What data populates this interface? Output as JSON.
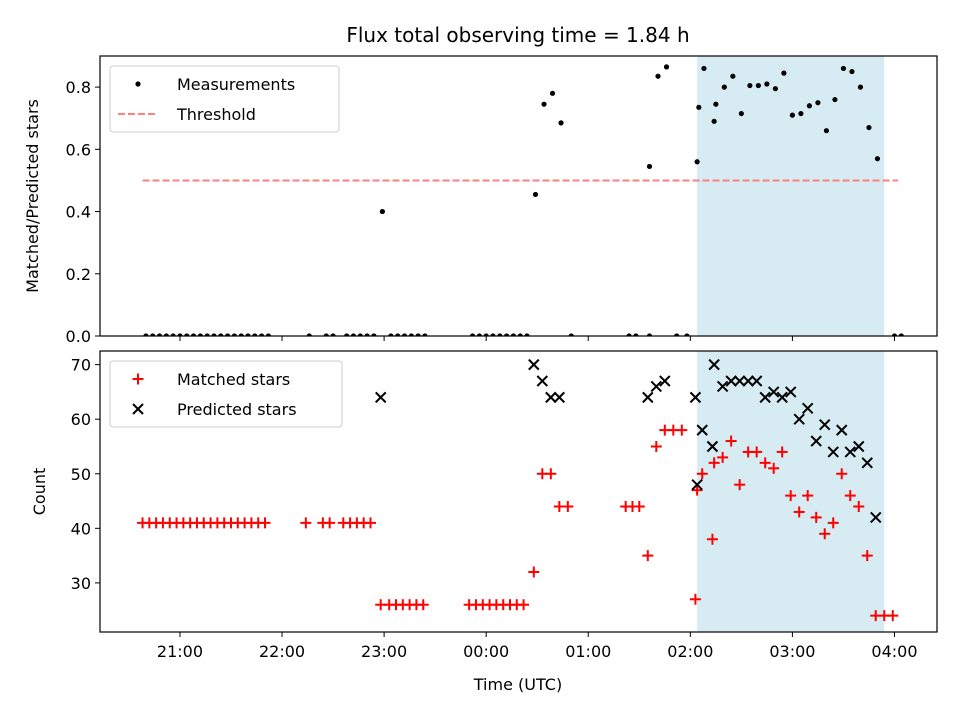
{
  "chart_data": {
    "title": "Flux total observing time = 1.84 h",
    "xlabel": "Time (UTC)",
    "x_tick_labels": [
      "21:00",
      "22:00",
      "23:00",
      "00:00",
      "01:00",
      "02:00",
      "03:00",
      "04:00"
    ],
    "highlight_interval": [
      "02:04",
      "03:54"
    ],
    "highlight_color": "#add8e6",
    "panels": [
      {
        "type": "scatter",
        "ylabel": "Matched/Predicted stars",
        "ylim": [
          0,
          0.9
        ],
        "y_ticks": [
          "0.0",
          "0.2",
          "0.4",
          "0.6",
          "0.8"
        ],
        "legend": "top-left",
        "series": [
          {
            "name": "Measurements",
            "marker": "dot",
            "color": "#000000",
            "points": [
              [
                "20:40",
                0
              ],
              [
                "20:44",
                0
              ],
              [
                "20:48",
                0
              ],
              [
                "20:52",
                0
              ],
              [
                "20:56",
                0
              ],
              [
                "21:00",
                0
              ],
              [
                "21:04",
                0
              ],
              [
                "21:08",
                0
              ],
              [
                "21:12",
                0
              ],
              [
                "21:16",
                0
              ],
              [
                "21:20",
                0
              ],
              [
                "21:24",
                0
              ],
              [
                "21:28",
                0
              ],
              [
                "21:32",
                0
              ],
              [
                "21:36",
                0
              ],
              [
                "21:40",
                0
              ],
              [
                "21:44",
                0
              ],
              [
                "21:48",
                0
              ],
              [
                "21:52",
                0
              ],
              [
                "22:16",
                0
              ],
              [
                "22:26",
                0
              ],
              [
                "22:30",
                0
              ],
              [
                "22:38",
                0
              ],
              [
                "22:42",
                0
              ],
              [
                "22:46",
                0
              ],
              [
                "22:50",
                0
              ],
              [
                "22:54",
                0
              ],
              [
                "22:59",
                0.4
              ],
              [
                "23:04",
                0
              ],
              [
                "23:08",
                0
              ],
              [
                "23:12",
                0
              ],
              [
                "23:16",
                0
              ],
              [
                "23:20",
                0
              ],
              [
                "23:24",
                0
              ],
              [
                "23:52",
                0
              ],
              [
                "23:56",
                0
              ],
              [
                "00:00",
                0
              ],
              [
                "00:04",
                0
              ],
              [
                "00:08",
                0
              ],
              [
                "00:12",
                0
              ],
              [
                "00:16",
                0
              ],
              [
                "00:20",
                0
              ],
              [
                "00:24",
                0
              ],
              [
                "00:29",
                0.455
              ],
              [
                "00:34",
                0.745
              ],
              [
                "00:39",
                0.78
              ],
              [
                "00:44",
                0.685
              ],
              [
                "00:50",
                0
              ],
              [
                "01:24",
                0
              ],
              [
                "01:28",
                0
              ],
              [
                "01:36",
                0
              ],
              [
                "01:36",
                0.545
              ],
              [
                "01:41",
                0.835
              ],
              [
                "01:46",
                0.865
              ],
              [
                "01:52",
                0
              ],
              [
                "01:58",
                0
              ],
              [
                "02:04",
                0.56
              ],
              [
                "02:05",
                0.735
              ],
              [
                "02:08",
                0.86
              ],
              [
                "02:14",
                0.69
              ],
              [
                "02:15",
                0.745
              ],
              [
                "02:20",
                0.8
              ],
              [
                "02:25",
                0.835
              ],
              [
                "02:30",
                0.715
              ],
              [
                "02:35",
                0.805
              ],
              [
                "02:40",
                0.805
              ],
              [
                "02:45",
                0.81
              ],
              [
                "02:50",
                0.795
              ],
              [
                "02:55",
                0.845
              ],
              [
                "03:00",
                0.71
              ],
              [
                "03:05",
                0.715
              ],
              [
                "03:10",
                0.74
              ],
              [
                "03:15",
                0.75
              ],
              [
                "03:20",
                0.66
              ],
              [
                "03:25",
                0.76
              ],
              [
                "03:30",
                0.86
              ],
              [
                "03:35",
                0.85
              ],
              [
                "03:40",
                0.8
              ],
              [
                "03:45",
                0.67
              ],
              [
                "03:50",
                0.57
              ],
              [
                "04:00",
                0
              ],
              [
                "04:04",
                0
              ]
            ]
          },
          {
            "name": "Threshold",
            "marker": "dashed-line",
            "color": "#ff7f7f",
            "points": [
              [
                "20:38",
                0.5
              ],
              [
                "04:02",
                0.5
              ]
            ]
          }
        ]
      },
      {
        "type": "scatter",
        "ylabel": "Count",
        "ylim": [
          21,
          72.5
        ],
        "y_ticks": [
          "30",
          "40",
          "50",
          "60",
          "70"
        ],
        "legend": "top-left",
        "series": [
          {
            "name": "Matched stars",
            "marker": "plus",
            "color": "#ff0000",
            "points": [
              [
                "20:38",
                41
              ],
              [
                "20:42",
                41
              ],
              [
                "20:46",
                41
              ],
              [
                "20:50",
                41
              ],
              [
                "20:54",
                41
              ],
              [
                "20:58",
                41
              ],
              [
                "21:02",
                41
              ],
              [
                "21:06",
                41
              ],
              [
                "21:10",
                41
              ],
              [
                "21:14",
                41
              ],
              [
                "21:18",
                41
              ],
              [
                "21:22",
                41
              ],
              [
                "21:26",
                41
              ],
              [
                "21:30",
                41
              ],
              [
                "21:34",
                41
              ],
              [
                "21:38",
                41
              ],
              [
                "21:42",
                41
              ],
              [
                "21:46",
                41
              ],
              [
                "21:50",
                41
              ],
              [
                "22:14",
                41
              ],
              [
                "22:24",
                41
              ],
              [
                "22:28",
                41
              ],
              [
                "22:36",
                41
              ],
              [
                "22:40",
                41
              ],
              [
                "22:44",
                41
              ],
              [
                "22:48",
                41
              ],
              [
                "22:52",
                41
              ],
              [
                "22:58",
                26
              ],
              [
                "23:03",
                26
              ],
              [
                "23:07",
                26
              ],
              [
                "23:11",
                26
              ],
              [
                "23:15",
                26
              ],
              [
                "23:19",
                26
              ],
              [
                "23:23",
                26
              ],
              [
                "23:50",
                26
              ],
              [
                "23:54",
                26
              ],
              [
                "23:58",
                26
              ],
              [
                "00:02",
                26
              ],
              [
                "00:06",
                26
              ],
              [
                "00:10",
                26
              ],
              [
                "00:14",
                26
              ],
              [
                "00:18",
                26
              ],
              [
                "00:22",
                26
              ],
              [
                "00:28",
                32
              ],
              [
                "00:33",
                50
              ],
              [
                "00:38",
                50
              ],
              [
                "00:43",
                44
              ],
              [
                "00:48",
                44
              ],
              [
                "01:22",
                44
              ],
              [
                "01:26",
                44
              ],
              [
                "01:30",
                44
              ],
              [
                "01:35",
                35
              ],
              [
                "01:40",
                55
              ],
              [
                "01:45",
                58
              ],
              [
                "01:50",
                58
              ],
              [
                "01:55",
                58
              ],
              [
                "02:03",
                27
              ],
              [
                "02:04",
                47
              ],
              [
                "02:07",
                50
              ],
              [
                "02:13",
                38
              ],
              [
                "02:14",
                52
              ],
              [
                "02:19",
                53
              ],
              [
                "02:24",
                56
              ],
              [
                "02:29",
                48
              ],
              [
                "02:34",
                54
              ],
              [
                "02:39",
                54
              ],
              [
                "02:44",
                52
              ],
              [
                "02:49",
                51
              ],
              [
                "02:54",
                54
              ],
              [
                "02:59",
                46
              ],
              [
                "03:04",
                43
              ],
              [
                "03:09",
                46
              ],
              [
                "03:14",
                42
              ],
              [
                "03:19",
                39
              ],
              [
                "03:24",
                41
              ],
              [
                "03:29",
                50
              ],
              [
                "03:34",
                46
              ],
              [
                "03:39",
                44
              ],
              [
                "03:44",
                35
              ],
              [
                "03:49",
                24
              ],
              [
                "03:54",
                24
              ],
              [
                "03:59",
                24
              ]
            ]
          },
          {
            "name": "Predicted stars",
            "marker": "x",
            "color": "#000000",
            "points": [
              [
                "22:58",
                64
              ],
              [
                "00:28",
                70
              ],
              [
                "00:33",
                67
              ],
              [
                "00:38",
                64
              ],
              [
                "00:43",
                64
              ],
              [
                "01:35",
                64
              ],
              [
                "01:40",
                66
              ],
              [
                "01:45",
                67
              ],
              [
                "02:03",
                64
              ],
              [
                "02:04",
                48
              ],
              [
                "02:07",
                58
              ],
              [
                "02:13",
                55
              ],
              [
                "02:14",
                70
              ],
              [
                "02:19",
                66
              ],
              [
                "02:24",
                67
              ],
              [
                "02:29",
                67
              ],
              [
                "02:34",
                67
              ],
              [
                "02:39",
                67
              ],
              [
                "02:44",
                64
              ],
              [
                "02:49",
                65
              ],
              [
                "02:54",
                64
              ],
              [
                "02:59",
                65
              ],
              [
                "03:04",
                60
              ],
              [
                "03:09",
                62
              ],
              [
                "03:14",
                56
              ],
              [
                "03:19",
                59
              ],
              [
                "03:24",
                54
              ],
              [
                "03:29",
                58
              ],
              [
                "03:34",
                54
              ],
              [
                "03:39",
                55
              ],
              [
                "03:44",
                52
              ],
              [
                "03:49",
                42
              ]
            ]
          }
        ]
      }
    ]
  }
}
